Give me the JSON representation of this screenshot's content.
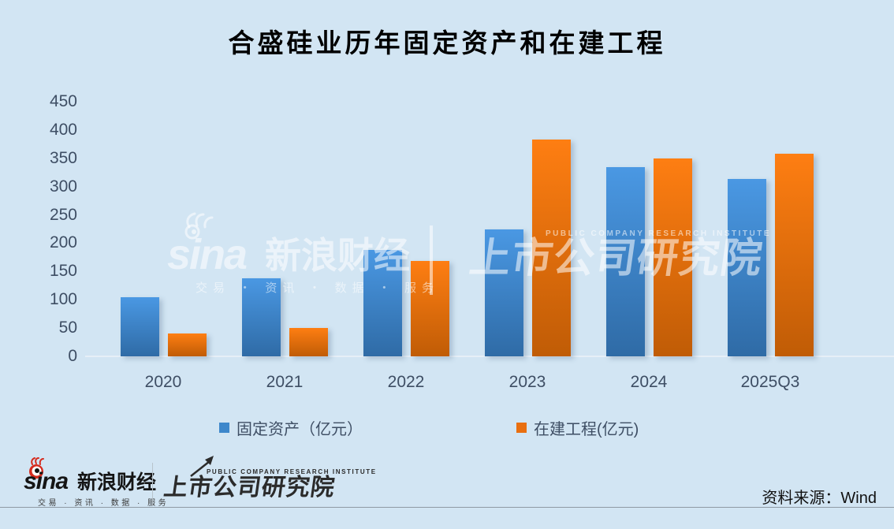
{
  "title": "合盛硅业历年固定资产和在建工程",
  "chart_data": {
    "type": "bar",
    "title": "合盛硅业历年固定资产和在建工程",
    "categories": [
      "2020",
      "2021",
      "2022",
      "2023",
      "2024",
      "2025Q3"
    ],
    "series": [
      {
        "name": "固定资产（亿元）",
        "values": [
          105,
          138,
          188,
          224,
          334,
          313
        ],
        "legend_color": "#3d87cb",
        "color_top": "#4a98e3",
        "color_bottom": "#2f6ba6"
      },
      {
        "name": "在建工程(亿元)",
        "values": [
          40,
          50,
          168,
          383,
          350,
          358
        ],
        "legend_color": "#e96f10",
        "color_top": "#fe7e12",
        "color_bottom": "#c05c06"
      }
    ],
    "xlabel": "",
    "ylabel": "",
    "ylim": [
      0,
      450
    ],
    "yticks": [
      450,
      400,
      350,
      300,
      250,
      200,
      150,
      100,
      50,
      0
    ],
    "grid": false,
    "legend_position": "bottom",
    "background_color": "#d2e5f3"
  },
  "watermark": {
    "sina_wordmark": "sina",
    "sina_brand": "新浪财经",
    "sina_tagline": "交易 ・ 资讯 ・ 数据 ・ 服务",
    "institute_caption": "PUBLIC COMPANY RESEARCH INSTITUTE",
    "institute_name": "上市公司研究院"
  },
  "footer": {
    "sina_wordmark": "sina",
    "sina_brand": "新浪财经",
    "sina_tagline": "交易 · 资讯 · 数据 · 服务",
    "institute_caption": "PUBLIC COMPANY RESEARCH INSTITUTE",
    "institute_name": "上市公司研究院",
    "source": "资料来源：Wind"
  }
}
